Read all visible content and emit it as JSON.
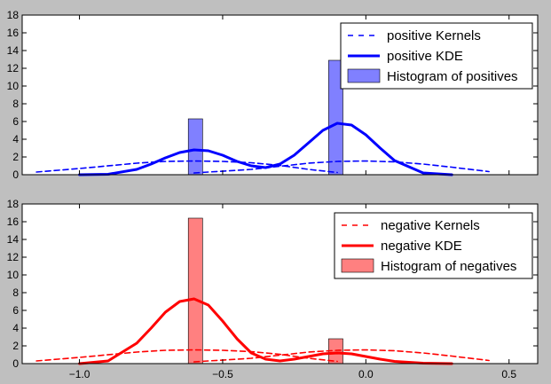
{
  "chart_data": [
    {
      "type": "line",
      "title": "",
      "xlabel": "",
      "ylabel": "",
      "xlim": [
        -1.2,
        0.6
      ],
      "ylim": [
        0,
        18
      ],
      "yticks": [
        0,
        2,
        4,
        6,
        8,
        10,
        12,
        14,
        16,
        18
      ],
      "xticks": [
        -1.0,
        -0.5,
        0.0,
        0.5
      ],
      "show_xtick_labels": false,
      "legend_position": "upper right",
      "series": [
        {
          "name": "positive Kernels",
          "style": "dashed",
          "color": "#0000ff",
          "curves": [
            {
              "x": [
                -1.15,
                -1.0,
                -0.8,
                -0.7,
                -0.6,
                -0.5,
                -0.4,
                -0.3,
                -0.2,
                -0.1
              ],
              "y": [
                0.3,
                0.7,
                1.3,
                1.5,
                1.55,
                1.5,
                1.35,
                1.05,
                0.6,
                0.25
              ]
            },
            {
              "x": [
                -0.6,
                -0.4,
                -0.3,
                -0.2,
                -0.1,
                0.0,
                0.1,
                0.2,
                0.3,
                0.43
              ],
              "y": [
                0.2,
                0.6,
                0.95,
                1.3,
                1.5,
                1.55,
                1.45,
                1.2,
                0.85,
                0.35
              ]
            }
          ]
        },
        {
          "name": "positive KDE",
          "style": "solid",
          "color": "#0000ff",
          "x": [
            -1.0,
            -0.9,
            -0.8,
            -0.75,
            -0.7,
            -0.65,
            -0.6,
            -0.55,
            -0.5,
            -0.45,
            -0.4,
            -0.35,
            -0.3,
            -0.25,
            -0.2,
            -0.15,
            -0.1,
            -0.05,
            0.0,
            0.05,
            0.1,
            0.2,
            0.3
          ],
          "y": [
            0.0,
            0.05,
            0.6,
            1.2,
            1.9,
            2.5,
            2.8,
            2.7,
            2.2,
            1.5,
            1.0,
            0.8,
            1.2,
            2.2,
            3.6,
            5.0,
            5.8,
            5.6,
            4.5,
            3.0,
            1.6,
            0.2,
            0.0
          ]
        }
      ],
      "histogram": {
        "name": "Histogram of positives",
        "color": "#8080ff",
        "bins": [
          {
            "x0": -0.62,
            "x1": -0.57,
            "height": 6.3
          },
          {
            "x0": -0.13,
            "x1": -0.08,
            "height": 12.9
          }
        ]
      }
    },
    {
      "type": "line",
      "title": "",
      "xlabel": "",
      "ylabel": "",
      "xlim": [
        -1.2,
        0.6
      ],
      "ylim": [
        0,
        18
      ],
      "yticks": [
        0,
        2,
        4,
        6,
        8,
        10,
        12,
        14,
        16,
        18
      ],
      "xticks": [
        -1.0,
        -0.5,
        0.0,
        0.5
      ],
      "xtick_labels": [
        "−1.0",
        "−0.5",
        "0.0",
        "0.5"
      ],
      "legend_position": "upper right",
      "series": [
        {
          "name": "negative Kernels",
          "style": "dashed",
          "color": "#ff0000",
          "curves": [
            {
              "x": [
                -1.15,
                -1.0,
                -0.8,
                -0.7,
                -0.6,
                -0.5,
                -0.4,
                -0.3,
                -0.2,
                -0.1
              ],
              "y": [
                0.3,
                0.7,
                1.3,
                1.5,
                1.55,
                1.5,
                1.35,
                1.05,
                0.6,
                0.25
              ]
            },
            {
              "x": [
                -0.6,
                -0.4,
                -0.3,
                -0.2,
                -0.1,
                0.0,
                0.1,
                0.2,
                0.3,
                0.43
              ],
              "y": [
                0.2,
                0.6,
                0.95,
                1.3,
                1.5,
                1.55,
                1.45,
                1.2,
                0.85,
                0.35
              ]
            }
          ]
        },
        {
          "name": "negative KDE",
          "style": "solid",
          "color": "#ff0000",
          "x": [
            -1.0,
            -0.9,
            -0.8,
            -0.75,
            -0.7,
            -0.65,
            -0.6,
            -0.55,
            -0.5,
            -0.45,
            -0.4,
            -0.35,
            -0.3,
            -0.25,
            -0.2,
            -0.15,
            -0.1,
            -0.05,
            0.0,
            0.05,
            0.1,
            0.2,
            0.3
          ],
          "y": [
            0.0,
            0.3,
            2.3,
            4.0,
            5.8,
            7.0,
            7.3,
            6.6,
            4.8,
            2.8,
            1.2,
            0.5,
            0.3,
            0.5,
            0.8,
            1.1,
            1.2,
            1.1,
            0.8,
            0.5,
            0.25,
            0.05,
            0.0
          ]
        }
      ],
      "histogram": {
        "name": "Histogram of negatives",
        "color": "#ff8080",
        "bins": [
          {
            "x0": -0.62,
            "x1": -0.57,
            "height": 16.4
          },
          {
            "x0": -0.13,
            "x1": -0.08,
            "height": 2.8
          }
        ]
      }
    }
  ]
}
